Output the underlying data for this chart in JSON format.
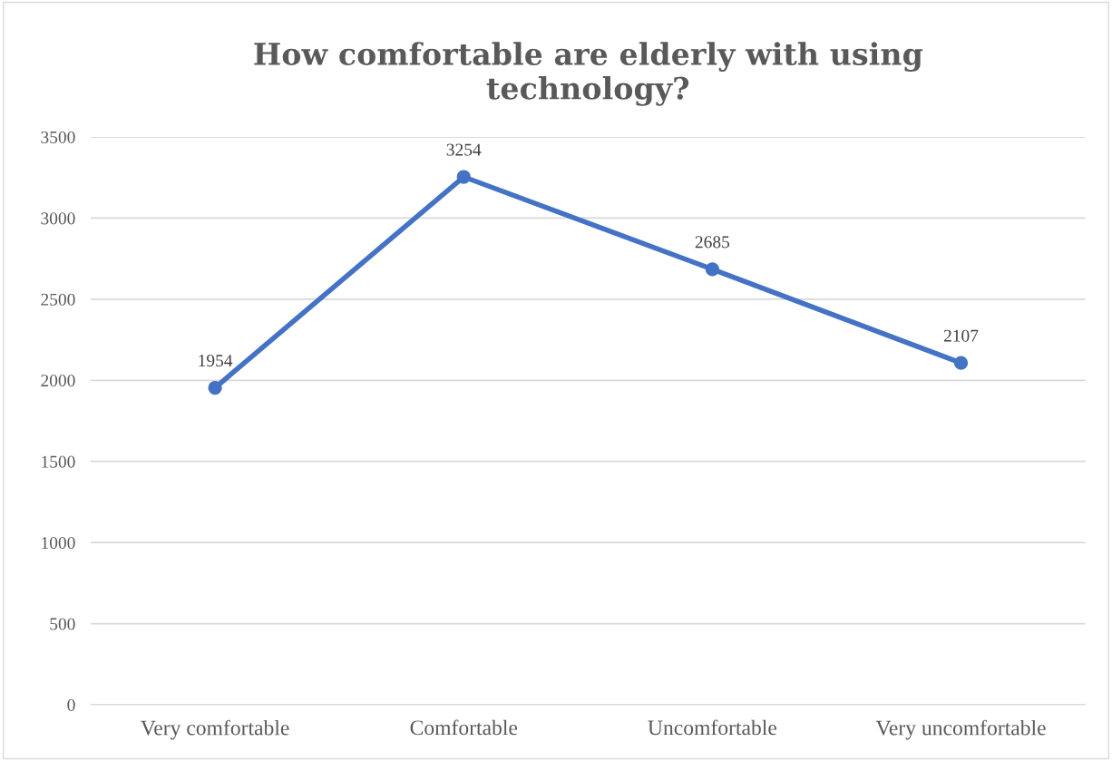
{
  "chart_data": {
    "type": "line",
    "title": "How comfortable are elderly with using\ntechnology?",
    "categories": [
      "Very comfortable",
      "Comfortable",
      "Uncomfortable",
      "Very uncomfortable"
    ],
    "series": [
      {
        "color": "#4472c4",
        "values": [
          1954,
          3254,
          2685,
          2107
        ]
      }
    ],
    "ylim": [
      0,
      3500
    ],
    "yticks": [
      0,
      500,
      1000,
      1500,
      2000,
      2500,
      3000,
      3500
    ],
    "grid": "y",
    "legend": false,
    "data_labels": true,
    "marker": "circle",
    "line_style": "solid"
  }
}
